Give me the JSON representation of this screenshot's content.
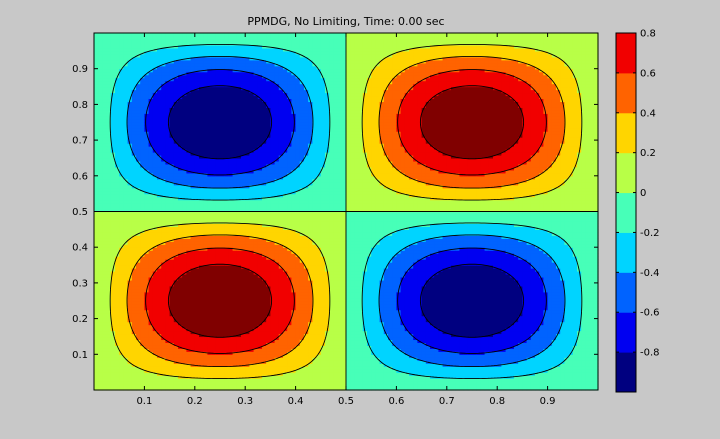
{
  "window": {
    "background": "#c8c8c8"
  },
  "chart_data": {
    "type": "heatmap",
    "title": "PPMDG, No Limiting, Time: 0.00 sec",
    "xlabel": "",
    "ylabel": "",
    "field": "z = sin(2*pi*x) * sin(2*pi*y)",
    "xlim": [
      0,
      1
    ],
    "ylim": [
      0,
      1
    ],
    "clim": [
      -1,
      0.8
    ],
    "x_ticks": [
      0.1,
      0.2,
      0.3,
      0.4,
      0.5,
      0.6,
      0.7,
      0.8,
      0.9
    ],
    "x_tick_labels": [
      "0.1",
      "0.2",
      "0.3",
      "0.4",
      "0.5",
      "0.6",
      "0.7",
      "0.8",
      "0.9"
    ],
    "y_ticks": [
      0.1,
      0.2,
      0.3,
      0.4,
      0.5,
      0.6,
      0.7,
      0.8,
      0.9
    ],
    "y_tick_labels": [
      "0.1",
      "0.2",
      "0.3",
      "0.4",
      "0.5",
      "0.6",
      "0.7",
      "0.8",
      "0.9"
    ],
    "colorbar_ticks": [
      -0.8,
      -0.6,
      -0.4,
      -0.2,
      0,
      0.2,
      0.4,
      0.6,
      0.8
    ],
    "colorbar_tick_labels": [
      "-0.8",
      "-0.6",
      "-0.4",
      "-0.2",
      "0",
      "0.2",
      "0.4",
      "0.6",
      "0.8"
    ],
    "contour_levels": [
      -0.8,
      -0.6,
      -0.4,
      -0.2,
      0,
      0.2,
      0.4,
      0.6,
      0.8
    ],
    "colormap": "jet",
    "extrema": [
      {
        "x": 0.25,
        "y": 0.75,
        "value": -1
      },
      {
        "x": 0.75,
        "y": 0.75,
        "value": 1
      },
      {
        "x": 0.25,
        "y": 0.25,
        "value": 1
      },
      {
        "x": 0.75,
        "y": 0.25,
        "value": -1
      }
    ],
    "colors": {
      "contour_line": "#000000",
      "axes_background": "#ffffff"
    }
  }
}
